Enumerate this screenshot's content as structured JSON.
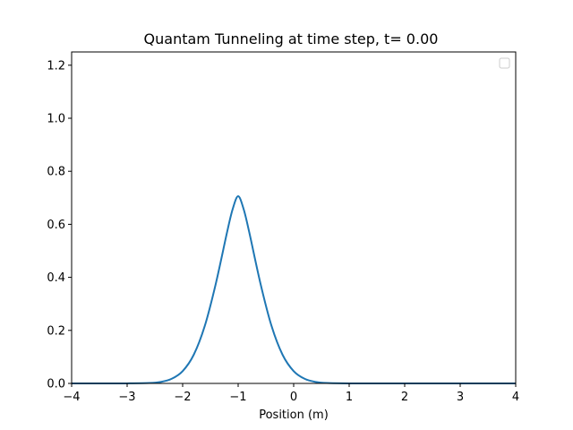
{
  "chart_data": {
    "type": "line",
    "title": "Quantam Tunneling at time step, t= 0.00",
    "xlabel": "Position (m)",
    "ylabel": "",
    "xlim": [
      -4,
      4
    ],
    "ylim": [
      0,
      1.25
    ],
    "xticks": [
      -4,
      -3,
      -2,
      -1,
      0,
      1,
      2,
      3,
      4
    ],
    "xtick_labels": [
      "−4",
      "−3",
      "−2",
      "−1",
      "0",
      "1",
      "2",
      "3",
      "4"
    ],
    "yticks": [
      0,
      0.2,
      0.4,
      0.6,
      0.8,
      1.0,
      1.2
    ],
    "ytick_labels": [
      "0.0",
      "0.2",
      "0.4",
      "0.6",
      "0.8",
      "1.0",
      "1.2"
    ],
    "grid": false,
    "legend": {
      "placement": "top-right",
      "entries": []
    },
    "series": [
      {
        "color": "#1f77b4",
        "x": [
          -4.0,
          -3.5,
          -3.0,
          -2.6,
          -2.4,
          -2.2,
          -2.0,
          -1.8,
          -1.6,
          -1.4,
          -1.2,
          -1.1,
          -1.0,
          -0.9,
          -0.8,
          -0.6,
          -0.4,
          -0.2,
          0.0,
          0.2,
          0.4,
          0.6,
          1.0,
          1.5,
          2.0,
          3.0,
          4.0
        ],
        "y": [
          0.0,
          0.0,
          0.0002,
          0.0015,
          0.0055,
          0.0172,
          0.0464,
          0.1081,
          0.2176,
          0.3785,
          0.57,
          0.6564,
          0.7061,
          0.6564,
          0.57,
          0.3785,
          0.2176,
          0.1081,
          0.0464,
          0.0172,
          0.0055,
          0.0015,
          0.0001,
          0.0,
          0.0,
          0.0,
          0.0
        ]
      }
    ]
  }
}
